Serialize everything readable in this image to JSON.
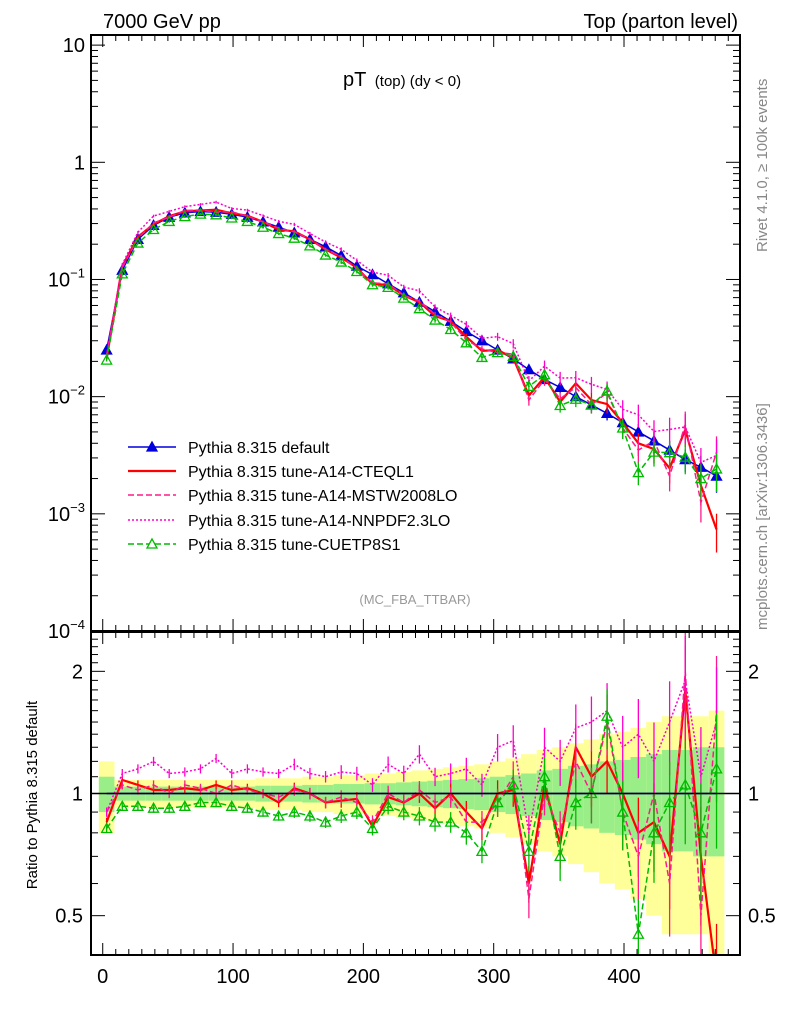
{
  "header": {
    "left": "7000 GeV pp",
    "right": "Top (parton level)"
  },
  "side_text": {
    "rivet": "Rivet 4.1.0, ≥ 100k events",
    "mcplots": "mcplots.cern.ch [arXiv:1306.3436]"
  },
  "analysis_tag": "(MC_FBA_TTBAR)",
  "chart_data": {
    "type": "line",
    "title": {
      "main": "pT",
      "sub": "(top) (dy < 0)"
    },
    "xlabel": "",
    "ylabel": "",
    "ratio_ylabel": "Ratio to Pythia 8.315 default",
    "xlim": [
      -9,
      489
    ],
    "ylim": [
      0.0001,
      12.2
    ],
    "yscale": "log",
    "ratio_ylim": [
      0.4,
      2.5
    ],
    "x_ticks": [
      "0",
      "100",
      "200",
      "300",
      "400"
    ],
    "y_ticks": [
      {
        "base": "10",
        "exp": "",
        "value": 10
      },
      {
        "base": "1",
        "exp": "",
        "value": 1
      },
      {
        "base": "10",
        "exp": "−1",
        "value": 0.1
      },
      {
        "base": "10",
        "exp": "−2",
        "value": 0.01
      },
      {
        "base": "10",
        "exp": "−3",
        "value": 0.001
      },
      {
        "base": "10",
        "exp": "−4",
        "value": 0.0001
      }
    ],
    "ratio_ticks": [
      "2",
      "1",
      "0.5"
    ],
    "ratio_tick_values": [
      2,
      1,
      0.5
    ],
    "legend_position": "bottom-left",
    "x": [
      3,
      15,
      27,
      39,
      51,
      63,
      75,
      87,
      99,
      111,
      123,
      135,
      147,
      159,
      171,
      183,
      195,
      207,
      219,
      231,
      243,
      255,
      267,
      279,
      291,
      303,
      315,
      327,
      339,
      351,
      363,
      375,
      387,
      399,
      411,
      423,
      435,
      447,
      459,
      471
    ],
    "reference": [
      0.025,
      0.12,
      0.22,
      0.29,
      0.34,
      0.37,
      0.38,
      0.375,
      0.36,
      0.34,
      0.31,
      0.28,
      0.25,
      0.22,
      0.19,
      0.16,
      0.13,
      0.11,
      0.092,
      0.077,
      0.064,
      0.053,
      0.044,
      0.036,
      0.03,
      0.025,
      0.021,
      0.017,
      0.014,
      0.012,
      0.01,
      0.0085,
      0.0072,
      0.006,
      0.005,
      0.0042,
      0.0035,
      0.0029,
      0.0025,
      0.0021
    ],
    "rel_err": [
      0.02,
      0.02,
      0.02,
      0.02,
      0.02,
      0.02,
      0.02,
      0.02,
      0.02,
      0.02,
      0.02,
      0.02,
      0.025,
      0.025,
      0.025,
      0.03,
      0.03,
      0.03,
      0.035,
      0.035,
      0.04,
      0.04,
      0.045,
      0.05,
      0.05,
      0.06,
      0.07,
      0.08,
      0.09,
      0.1,
      0.11,
      0.12,
      0.13,
      0.15,
      0.17,
      0.19,
      0.2,
      0.22,
      0.25,
      0.28
    ],
    "band_yellow": [
      0.2,
      0.08,
      0.08,
      0.08,
      0.08,
      0.08,
      0.08,
      0.08,
      0.08,
      0.08,
      0.09,
      0.09,
      0.09,
      0.1,
      0.1,
      0.11,
      0.11,
      0.12,
      0.12,
      0.13,
      0.14,
      0.15,
      0.16,
      0.17,
      0.18,
      0.2,
      0.22,
      0.25,
      0.28,
      0.3,
      0.33,
      0.36,
      0.4,
      0.42,
      0.45,
      0.5,
      0.55,
      0.55,
      0.55,
      0.6
    ],
    "band_green": [
      0.1,
      0.04,
      0.04,
      0.04,
      0.04,
      0.04,
      0.04,
      0.04,
      0.04,
      0.04,
      0.045,
      0.045,
      0.045,
      0.05,
      0.05,
      0.055,
      0.055,
      0.06,
      0.06,
      0.065,
      0.07,
      0.075,
      0.08,
      0.085,
      0.09,
      0.1,
      0.11,
      0.12,
      0.14,
      0.15,
      0.17,
      0.18,
      0.2,
      0.21,
      0.23,
      0.25,
      0.28,
      0.28,
      0.3,
      0.3
    ],
    "series": [
      {
        "name": "Pythia 8.315 default",
        "color": "#0000dd",
        "style": "solid",
        "marker": "triangle-filled",
        "ratio": [
          1,
          1,
          1,
          1,
          1,
          1,
          1,
          1,
          1,
          1,
          1,
          1,
          1,
          1,
          1,
          1,
          1,
          1,
          1,
          1,
          1,
          1,
          1,
          1,
          1,
          1,
          1,
          1,
          1,
          1,
          1,
          1,
          1,
          1,
          1,
          1,
          1,
          1,
          1,
          1
        ]
      },
      {
        "name": "Pythia 8.315 tune-A14-CTEQL1",
        "color": "#ff0000",
        "style": "solid",
        "marker": "none",
        "ratio": [
          0.85,
          1.08,
          1.05,
          1.02,
          1.02,
          1.03,
          1.02,
          1.05,
          1.02,
          1.03,
          1.0,
          0.95,
          1.03,
          1.0,
          0.95,
          0.96,
          0.97,
          0.83,
          0.98,
          0.95,
          1.0,
          0.92,
          1.0,
          0.9,
          0.82,
          1.0,
          1.02,
          0.6,
          1.05,
          0.75,
          1.3,
          1.1,
          1.2,
          1.0,
          0.8,
          0.85,
          0.7,
          1.8,
          0.7,
          0.35
        ]
      },
      {
        "name": "Pythia 8.315 tune-A14-MSTW2008LO",
        "color": "#ff1a8c",
        "style": "dashed",
        "marker": "none",
        "ratio": [
          0.9,
          1.05,
          1.02,
          1.05,
          1.0,
          1.05,
          1.03,
          1.0,
          1.05,
          1.02,
          1.0,
          0.98,
          1.02,
          1.0,
          0.95,
          0.98,
          0.95,
          0.85,
          1.0,
          0.95,
          1.02,
          0.95,
          0.98,
          0.85,
          0.85,
          0.95,
          1.1,
          0.55,
          1.0,
          0.8,
          1.2,
          1.0,
          1.5,
          0.9,
          0.7,
          1.0,
          0.6,
          2.0,
          0.5,
          1.6
        ]
      },
      {
        "name": "Pythia 8.315 tune-A14-NNPDF2.3LO",
        "color": "#ff00cc",
        "style": "dotted",
        "marker": "none",
        "ratio": [
          0.9,
          1.12,
          1.15,
          1.2,
          1.12,
          1.13,
          1.15,
          1.22,
          1.12,
          1.15,
          1.13,
          1.12,
          1.18,
          1.12,
          1.1,
          1.13,
          1.12,
          1.05,
          1.18,
          1.12,
          1.25,
          1.1,
          1.12,
          1.15,
          1.05,
          1.3,
          1.35,
          0.8,
          1.3,
          1.2,
          1.45,
          1.5,
          1.6,
          1.3,
          1.4,
          1.2,
          1.5,
          1.9,
          1.1,
          1.5
        ]
      },
      {
        "name": "Pythia 8.315 tune-CUETP8S1",
        "color": "#00bb00",
        "style": "dashed",
        "marker": "triangle-open",
        "ratio": [
          0.82,
          0.93,
          0.93,
          0.92,
          0.92,
          0.93,
          0.95,
          0.95,
          0.93,
          0.92,
          0.9,
          0.88,
          0.9,
          0.88,
          0.85,
          0.88,
          0.9,
          0.82,
          0.93,
          0.9,
          0.88,
          0.85,
          0.85,
          0.8,
          0.72,
          0.95,
          1.05,
          0.72,
          1.1,
          0.7,
          0.95,
          1.0,
          1.55,
          0.9,
          0.45,
          0.8,
          0.95,
          1.05,
          0.8,
          1.15
        ]
      }
    ]
  }
}
